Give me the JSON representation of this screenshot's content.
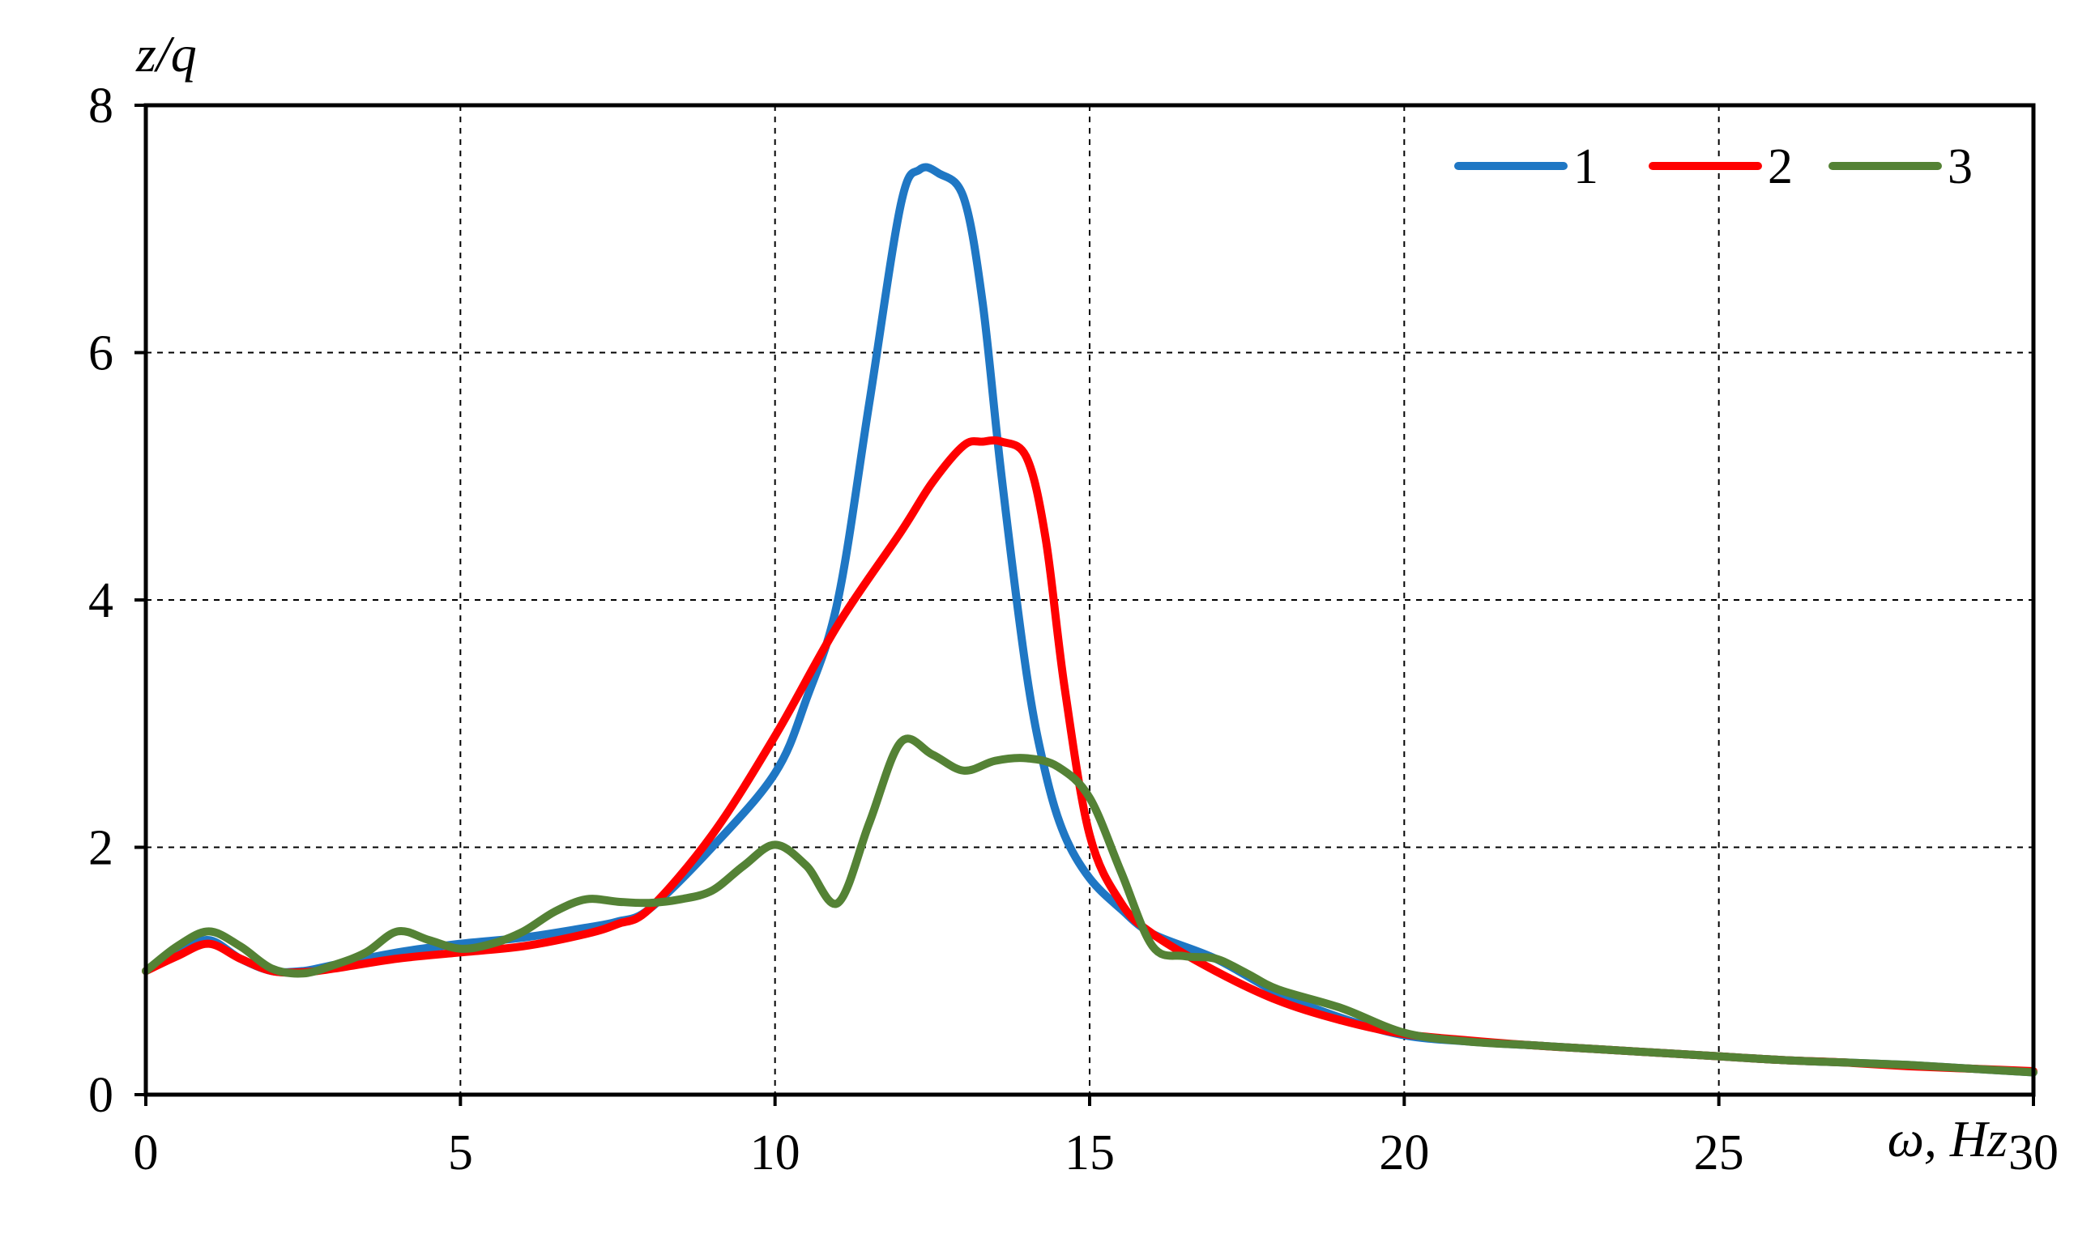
{
  "chart_data": {
    "type": "line",
    "xlabel": "ω, Hz",
    "ylabel": "z/q",
    "xlim": [
      0,
      30
    ],
    "ylim": [
      0,
      8
    ],
    "x_ticks": [
      0,
      5,
      10,
      15,
      20,
      25,
      30
    ],
    "y_ticks": [
      0,
      2,
      4,
      6,
      8
    ],
    "grid": true,
    "legend_position": "top-right",
    "series": [
      {
        "name": "1",
        "color": "#1F77C4",
        "x": [
          0,
          0.5,
          1,
          1.5,
          2,
          2.5,
          3,
          4,
          5,
          6,
          7,
          7.5,
          8,
          9,
          10,
          10.5,
          11,
          11.5,
          12,
          12.3,
          12.6,
          13,
          13.3,
          13.6,
          14,
          14.3,
          14.6,
          15,
          15.5,
          16,
          17,
          18,
          19,
          20,
          21,
          22,
          23,
          24,
          25,
          26,
          27,
          28,
          29,
          30
        ],
        "y": [
          1.0,
          1.15,
          1.25,
          1.1,
          1.0,
          1.0,
          1.05,
          1.15,
          1.22,
          1.27,
          1.35,
          1.4,
          1.5,
          2.0,
          2.6,
          3.2,
          4.0,
          5.6,
          7.2,
          7.48,
          7.45,
          7.25,
          6.4,
          5.0,
          3.4,
          2.6,
          2.1,
          1.75,
          1.5,
          1.3,
          1.1,
          0.82,
          0.62,
          0.48,
          0.43,
          0.4,
          0.37,
          0.34,
          0.31,
          0.28,
          0.26,
          0.24,
          0.21,
          0.18
        ]
      },
      {
        "name": "2",
        "color": "#FF0000",
        "x": [
          0,
          0.5,
          1,
          1.5,
          2,
          2.5,
          3,
          4,
          5,
          6,
          7,
          7.5,
          8,
          9,
          10,
          11,
          12,
          12.5,
          13,
          13.3,
          13.6,
          14,
          14.3,
          14.6,
          15,
          15.5,
          16,
          17,
          18,
          19,
          20,
          21,
          22,
          23,
          24,
          25,
          26,
          27,
          28,
          29,
          30
        ],
        "y": [
          1.0,
          1.12,
          1.22,
          1.1,
          1.0,
          0.99,
          1.02,
          1.1,
          1.15,
          1.2,
          1.3,
          1.38,
          1.5,
          2.1,
          2.9,
          3.8,
          4.55,
          4.95,
          5.25,
          5.28,
          5.28,
          5.15,
          4.5,
          3.3,
          2.1,
          1.55,
          1.3,
          1.0,
          0.76,
          0.6,
          0.49,
          0.44,
          0.4,
          0.37,
          0.34,
          0.31,
          0.28,
          0.26,
          0.23,
          0.21,
          0.19
        ]
      },
      {
        "name": "3",
        "color": "#548235",
        "x": [
          0,
          0.5,
          1,
          1.5,
          2,
          2.5,
          3,
          3.5,
          4,
          4.5,
          5,
          5.5,
          6,
          6.5,
          7,
          7.5,
          8,
          8.5,
          9,
          9.5,
          10,
          10.5,
          11,
          11.5,
          12,
          12.5,
          13,
          13.5,
          14,
          14.5,
          15,
          15.5,
          16,
          16.5,
          17,
          17.5,
          18,
          19,
          20,
          21,
          22,
          23,
          24,
          25,
          26,
          27,
          28,
          29,
          30
        ],
        "y": [
          1.0,
          1.2,
          1.32,
          1.2,
          1.02,
          0.98,
          1.05,
          1.15,
          1.32,
          1.25,
          1.18,
          1.22,
          1.32,
          1.48,
          1.58,
          1.56,
          1.55,
          1.58,
          1.65,
          1.85,
          2.02,
          1.85,
          1.55,
          2.2,
          2.85,
          2.75,
          2.62,
          2.7,
          2.72,
          2.65,
          2.4,
          1.8,
          1.2,
          1.12,
          1.1,
          0.98,
          0.85,
          0.7,
          0.5,
          0.43,
          0.4,
          0.37,
          0.34,
          0.31,
          0.28,
          0.26,
          0.24,
          0.21,
          0.18
        ]
      }
    ]
  }
}
